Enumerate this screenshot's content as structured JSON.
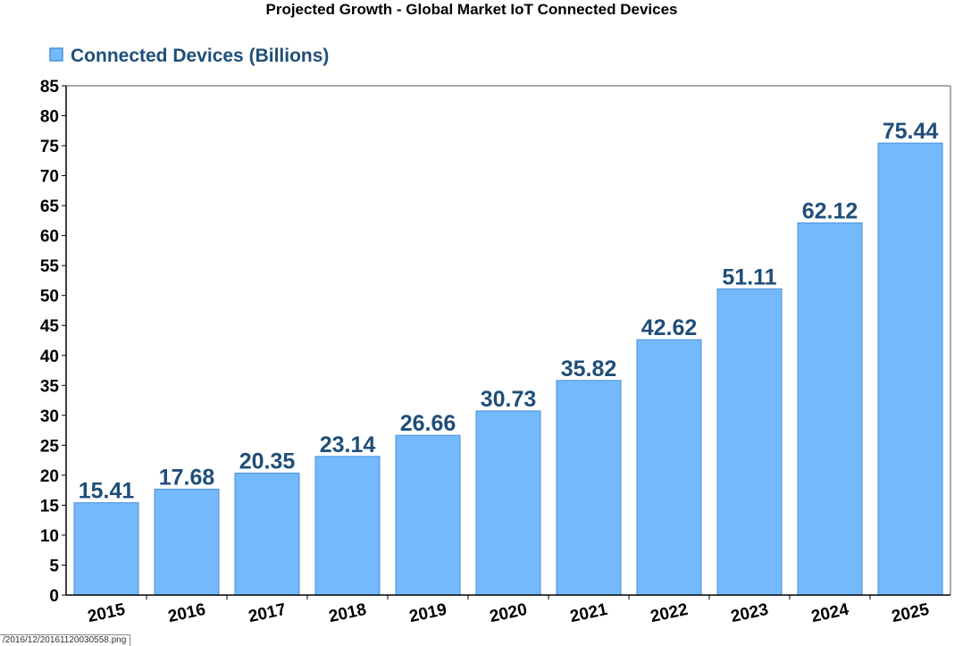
{
  "chart_data": {
    "type": "bar",
    "title": "Projected Growth - Global Market IoT Connected Devices",
    "xlabel": "",
    "ylabel": "",
    "categories": [
      "2015",
      "2016",
      "2017",
      "2018",
      "2019",
      "2020",
      "2021",
      "2022",
      "2023",
      "2024",
      "2025"
    ],
    "series": [
      {
        "name": "Connected Devices (Billions)",
        "values": [
          15.41,
          17.68,
          20.35,
          23.14,
          26.66,
          30.73,
          35.82,
          42.62,
          51.11,
          62.12,
          75.44
        ]
      }
    ],
    "value_labels": [
      "15.41",
      "17.68",
      "20.35",
      "23.14",
      "26.66",
      "30.73",
      "35.82",
      "42.62",
      "51.11",
      "62.12",
      "75.44"
    ],
    "ylim": [
      0,
      85
    ],
    "yticks": [
      "0",
      "5",
      "10",
      "15",
      "20",
      "25",
      "30",
      "35",
      "40",
      "45",
      "50",
      "55",
      "60",
      "65",
      "70",
      "75",
      "80",
      "85"
    ],
    "grid": false,
    "legend_position": "top-left",
    "x_tick_rotation": "angled",
    "colors": {
      "bar_fill": "#74b9fb",
      "bar_stroke": "#4a90d8",
      "label_text": "#1f4e79",
      "legend_text": "#1f4e79",
      "axis": "#000000"
    }
  },
  "footer": {
    "file_label": "/2016/12/20161120030558.png"
  }
}
